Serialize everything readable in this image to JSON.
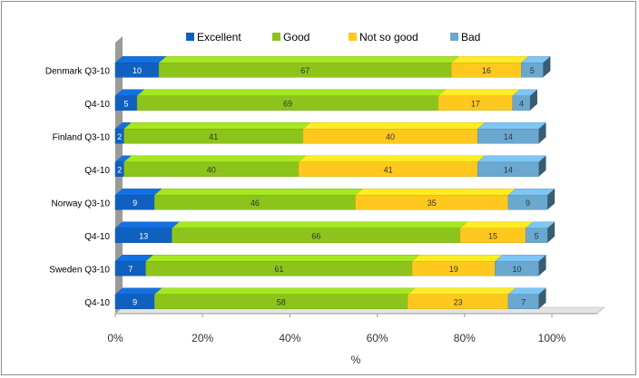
{
  "chart_data": {
    "type": "bar",
    "orientation": "horizontal",
    "stacked": "percent",
    "categories": [
      "Denmark Q3-10",
      "Q4-10",
      "Finland Q3-10",
      "Q4-10",
      "Norway Q3-10",
      "Q4-10",
      "Sweden Q3-10",
      "Q4-10"
    ],
    "series": [
      {
        "name": "Excellent",
        "color": "#1060c0",
        "values": [
          10,
          5,
          2,
          2,
          9,
          13,
          7,
          9
        ]
      },
      {
        "name": "Good",
        "color": "#8cc41c",
        "values": [
          67,
          69,
          41,
          40,
          46,
          66,
          61,
          58
        ]
      },
      {
        "name": "Not so good",
        "color": "#ffc81e",
        "values": [
          16,
          17,
          40,
          41,
          35,
          15,
          19,
          23
        ]
      },
      {
        "name": "Bad",
        "color": "#6aa8d0",
        "values": [
          5,
          4,
          14,
          14,
          9,
          5,
          10,
          7
        ]
      }
    ],
    "x_ticks": [
      "0%",
      "20%",
      "40%",
      "60%",
      "80%",
      "100%"
    ],
    "xlabel": "%",
    "xlim": [
      0,
      100
    ],
    "legend": "top",
    "grid": false
  }
}
